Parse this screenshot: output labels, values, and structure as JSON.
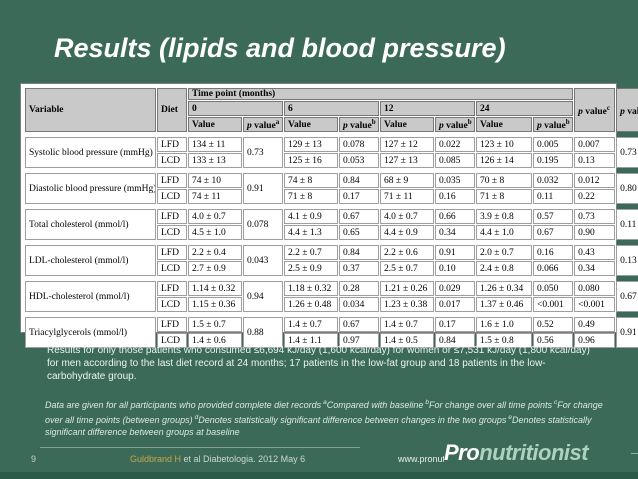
{
  "slide": {
    "title": "Results (lipids and blood pressure)",
    "colors": {
      "background": "#3B6B58",
      "bottom_bar": "#2C5A48",
      "author_gold": "#C9A54A",
      "logo_green": "#AED2BF",
      "table_header_bg": "#C9C9C9"
    }
  },
  "table": {
    "header": {
      "variable": "Variable",
      "diet": "Diet",
      "time_point": "Time point (months)",
      "t0": "0",
      "t6": "6",
      "t12": "12",
      "t24": "24",
      "value_label": "Value",
      "p_italic": "p",
      "value_word": "value",
      "sup_a": "a",
      "sup_b": "b",
      "sup_c": "c",
      "sup_d": "d"
    },
    "groups": [
      {
        "variable": "Systolic blood pressure (mmHg)",
        "p_a": "0.73",
        "p_d": "0.73",
        "rows": [
          {
            "diet": "LFD",
            "v0": "134 ± 11",
            "v6": "129 ± 13",
            "p6": "0.078",
            "v12": "127 ± 12",
            "p12": "0.022",
            "v24": "123 ± 10",
            "p24": "0.005",
            "p_c": "0.007"
          },
          {
            "diet": "LCD",
            "v0": "133 ± 13",
            "v6": "125 ± 16",
            "p6": "0.053",
            "v12": "127 ± 13",
            "p12": "0.085",
            "v24": "126 ± 14",
            "p24": "0.195",
            "p_c": "0.13"
          }
        ]
      },
      {
        "variable": "Diastolic blood pressure (mmHg)",
        "p_a": "0.91",
        "p_d": "0.80",
        "rows": [
          {
            "diet": "LFD",
            "v0": "74 ± 10",
            "v6": "74 ± 8",
            "p6": "0.84",
            "v12": "68 ± 9",
            "p12": "0.035",
            "v24": "70 ± 8",
            "p24": "0.032",
            "p_c": "0.012"
          },
          {
            "diet": "LCD",
            "v0": "74 ± 11",
            "v6": "71 ± 8",
            "p6": "0.17",
            "v12": "71 ± 11",
            "p12": "0.16",
            "v24": "71 ± 8",
            "p24": "0.11",
            "p_c": "0.22"
          }
        ]
      },
      {
        "variable": "Total cholesterol (mmol/l)",
        "p_a": "0.078",
        "p_d": "0.11",
        "rows": [
          {
            "diet": "LFD",
            "v0": "4.0 ± 0.7",
            "v6": "4.1 ± 0.9",
            "p6": "0.67",
            "v12": "4.0 ± 0.7",
            "p12": "0.66",
            "v24": "3.9 ± 0.8",
            "p24": "0.57",
            "p_c": "0.73"
          },
          {
            "diet": "LCD",
            "v0": "4.5 ± 1.0",
            "v6": "4.4 ± 1.3",
            "p6": "0.65",
            "v12": "4.4 ± 0.9",
            "p12": "0.34",
            "v24": "4.4 ± 1.0",
            "p24": "0.67",
            "p_c": "0.90"
          }
        ]
      },
      {
        "variable": "LDL-cholesterol (mmol/l)",
        "p_a": "0.043",
        "p_d": "0.13",
        "rows": [
          {
            "diet": "LFD",
            "v0": "2.2 ± 0.4",
            "v6": "2.2 ± 0.7",
            "p6": "0.84",
            "v12": "2.2 ± 0.6",
            "p12": "0.91",
            "v24": "2.0 ± 0.7",
            "p24": "0.16",
            "p_c": "0.43"
          },
          {
            "diet": "LCD",
            "v0": "2.7 ± 0.9",
            "v6": "2.5 ± 0.9",
            "p6": "0.37",
            "v12": "2.5 ± 0.7",
            "p12": "0.10",
            "v24": "2.4 ± 0.8",
            "p24": "0.066",
            "p_c": "0.34"
          }
        ]
      },
      {
        "variable": "HDL-cholesterol (mmol/l)",
        "p_a": "0.94",
        "p_d": "0.67",
        "rows": [
          {
            "diet": "LFD",
            "v0": "1.14 ± 0.32",
            "v6": "1.18 ± 0.32",
            "p6": "0.28",
            "v12": "1.21 ± 0.26",
            "p12": "0.029",
            "v24": "1.26 ± 0.34",
            "p24": "0.050",
            "p_c": "0.080"
          },
          {
            "diet": "LCD",
            "v0": "1.15 ± 0.36",
            "v6": "1.26 ± 0.48",
            "p6": "0.034",
            "v12": "1.23 ± 0.38",
            "p12": "0.017",
            "v24": "1.37 ± 0.46",
            "p24": "<0.001",
            "p_c": "<0.001"
          }
        ]
      },
      {
        "variable": "Triacylglycerols (mmol/l)",
        "p_a": "0.88",
        "p_d": "0.91",
        "rows": [
          {
            "diet": "LFD",
            "v0": "1.5 ± 0.7",
            "v6": "1.4 ± 0.7",
            "p6": "0.67",
            "v12": "1.4 ± 0.7",
            "p12": "0.17",
            "v24": "1.6 ± 1.0",
            "p24": "0.52",
            "p_c": "0.49"
          },
          {
            "diet": "LCD",
            "v0": "1.4 ± 0.6",
            "v6": "1.4 ± 1.1",
            "p6": "0.97",
            "v12": "1.4 ± 0.5",
            "p12": "0.84",
            "v24": "1.5 ± 0.8",
            "p24": "0.56",
            "p_c": "0.96"
          }
        ]
      }
    ]
  },
  "notes": {
    "patients": "Results for only those patients who consumed ≤6,694 kJ/day (1,600 kcal/day) for women or ≤7,531 kJ/day (1,800 kcal/day) for men according to the last diet record at 24 months; 17 patients in the low-fat group and 18 patients in the low-carbohydrate group.",
    "footnote_segments": [
      {
        "text": "Data are given for all participants who provided complete diet records"
      },
      {
        "sup": "a",
        "text": "Compared with baseline"
      },
      {
        "sup": "b",
        "text": "For change over all time points"
      },
      {
        "sup": "c",
        "text": "For change over all time points (between groups)"
      },
      {
        "sup": "d",
        "text": "Denotes statistically significant difference between changes in the two groups"
      },
      {
        "sup": "e",
        "text": "Denotes statistically significant difference between groups at baseline"
      }
    ]
  },
  "footer": {
    "page_number": "9",
    "citation_author": "Guldbrand H",
    "citation_rest": " et al Diabetologia. 2012 May 6",
    "website": "www.pronutritionist.net",
    "logo_pro": "Pro",
    "logo_rest": "nutritionist"
  }
}
